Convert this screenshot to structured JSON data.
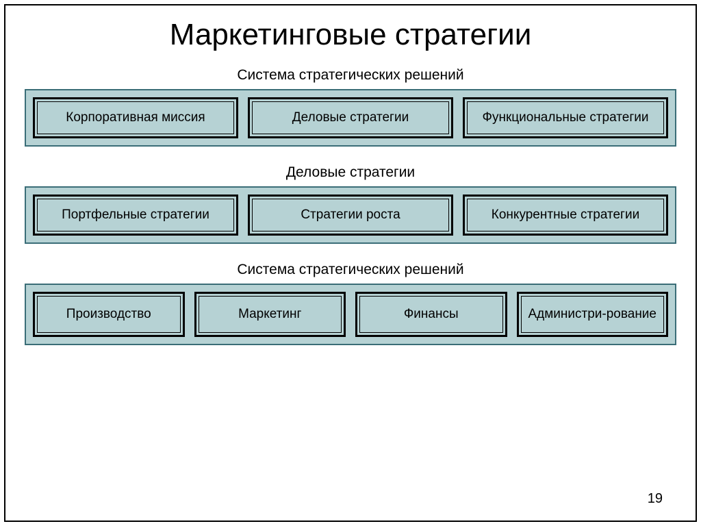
{
  "title": "Маркетинговые стратегии",
  "page_number": "19",
  "colors": {
    "box_fill": "#b6d2d4",
    "outer_border": "#3a6d77",
    "inner_border": "#000000",
    "text": "#000000",
    "background": "#ffffff"
  },
  "typography": {
    "title_fontsize": 44,
    "label_fontsize": 21,
    "box_fontsize": 19,
    "font_family": "Arial"
  },
  "sections": [
    {
      "label": "Система стратегических решений",
      "items": [
        "Корпоративная миссия",
        "Деловые стратегии",
        "Функциональные стратегии"
      ]
    },
    {
      "label": "Деловые стратегии",
      "items": [
        "Портфельные стратегии",
        "Стратегии роста",
        "Конкурентные стратегии"
      ]
    },
    {
      "label": "Система стратегических решений",
      "items": [
        "Производство",
        "Маркетинг",
        "Финансы",
        "Администри-рование"
      ]
    }
  ]
}
